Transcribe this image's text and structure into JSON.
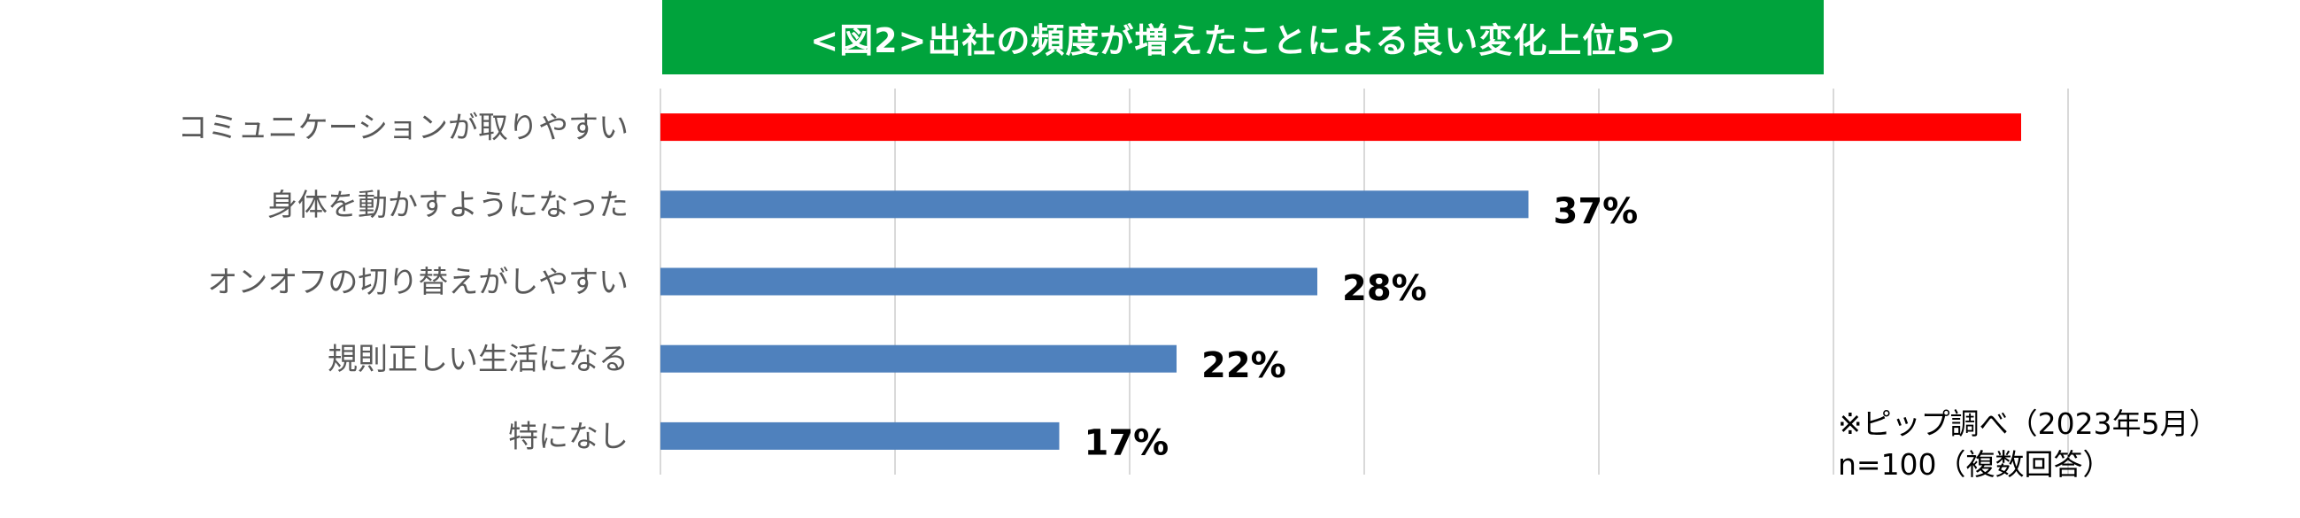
{
  "header": {
    "title": "<図2>出社の頻度が増えたことによる良い変化上位5つ"
  },
  "colors": {
    "title_bg": "#00a33c",
    "highlight_bar": "#ff0000",
    "bar": "#4f81bd",
    "grid": "#d9d9d9",
    "category_text": "#595959"
  },
  "chart_data": {
    "type": "bar",
    "orientation": "horizontal",
    "title": "<図2>出社の頻度が増えたことによる良い変化上位5つ",
    "categories": [
      "コミュニケーションが取りやすい",
      "身体を動かすようになった",
      "オンオフの切り替えがしやすい",
      "規則正しい生活になる",
      "特になし"
    ],
    "values": [
      58,
      37,
      28,
      22,
      17
    ],
    "value_labels": [
      "",
      "37%",
      "28%",
      "22%",
      "17%"
    ],
    "highlight_index": 0,
    "xlim": [
      0,
      70
    ],
    "grid": true,
    "unit": "%"
  },
  "notes": {
    "line1": "※ピップ調べ（2023年5月）",
    "line2": "n=100（複数回答）"
  }
}
